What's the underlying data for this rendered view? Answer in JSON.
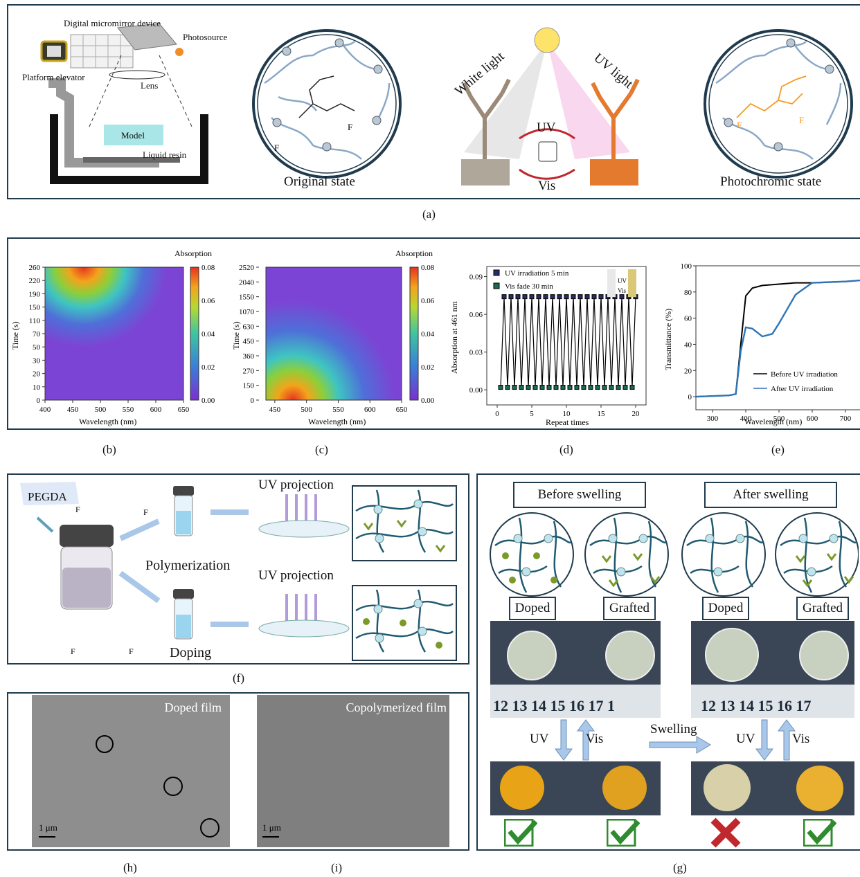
{
  "panel_a": {
    "dmd_label": "Digital micromirror device",
    "photosource_label": "Photosource",
    "platform_label": "Platform elevator",
    "lens_label": "Lens",
    "model_label": "Model",
    "resin_label": "Liquid resin",
    "original_state": "Original state",
    "white_light": "White light",
    "uv_light": "UV light",
    "uv": "UV",
    "vis": "Vis",
    "photochromic_state": "Photochromic state",
    "caption": "(a)"
  },
  "panel_b": {
    "caption": "(b)",
    "colorbar_title": "Absorption"
  },
  "panel_c": {
    "caption": "(c)",
    "colorbar_title": "Absorption"
  },
  "panel_d": {
    "caption": "(d)",
    "inset_top": "UV",
    "inset_bottom": "Vis"
  },
  "panel_e": {
    "caption": "(e)"
  },
  "panel_f": {
    "pegda": "PEGDA",
    "uv_projection_1": "UV projection",
    "uv_projection_2": "UV projection",
    "polymerization": "Polymerization",
    "doping": "Doping",
    "caption": "(f)"
  },
  "panel_g": {
    "before": "Before swelling",
    "after": "After swelling",
    "doped_1": "Doped",
    "grafted_1": "Grafted",
    "doped_2": "Doped",
    "grafted_2": "Grafted",
    "ruler_1": "12  13  14  15  16  17  1",
    "ruler_2": "12  13  14  15  16  17",
    "uv_1": "UV",
    "vis_1": "Vis",
    "uv_2": "UV",
    "vis_2": "Vis",
    "swelling": "Swelling",
    "caption": "(g)"
  },
  "panel_h": {
    "title": "Doped film",
    "scale": "1 μm",
    "caption": "(h)"
  },
  "panel_i": {
    "title": "Copolymerized film",
    "scale": "1 μm",
    "caption": "(i)"
  },
  "colors": {
    "frame": "#1f3b4d",
    "network": "#8aa8c8",
    "bead": "#b8c9d6",
    "orange": "#f59a23",
    "blue_curve": "#2e75b6",
    "check": "#2e8b2e",
    "cross": "#c0282d"
  },
  "chart_data": [
    {
      "type": "heatmap",
      "panel": "b",
      "xlabel": "Wavelength (nm)",
      "ylabel": "Time (s)",
      "x_ticks": [
        400,
        450,
        500,
        550,
        600,
        650
      ],
      "y_ticks": [
        0,
        10,
        20,
        30,
        50,
        70,
        110,
        150,
        190,
        220,
        260
      ],
      "colorbar_title": "Absorption",
      "colorbar_ticks": [
        "0.00",
        "0.02",
        "0.04",
        "0.06",
        "0.08"
      ],
      "peak_wavelength": 460
    },
    {
      "type": "heatmap",
      "panel": "c",
      "xlabel": "Wavelength (nm)",
      "ylabel": "Time (s)",
      "x_ticks": [
        450,
        500,
        550,
        600,
        650
      ],
      "y_ticks": [
        0,
        150,
        270,
        360,
        450,
        630,
        1070,
        1550,
        2040,
        2520
      ],
      "colorbar_title": "Absorption",
      "colorbar_ticks": [
        "0.00",
        "0.02",
        "0.04",
        "0.06",
        "0.08"
      ],
      "peak_wavelength": 460
    },
    {
      "type": "line",
      "panel": "d",
      "xlabel": "Repeat times",
      "ylabel": "Absorption at 461 nm",
      "x_ticks": [
        0,
        5,
        10,
        15,
        20
      ],
      "y_ticks": [
        "0.00",
        "0.03",
        "0.06",
        "0.09"
      ],
      "series": [
        {
          "name": "UV irradiation 5 min",
          "value": 0.074,
          "x": [
            1,
            2,
            3,
            4,
            5,
            6,
            7,
            8,
            9,
            10,
            11,
            12,
            13,
            14,
            15,
            16,
            17,
            18,
            19,
            20
          ]
        },
        {
          "name": "Vis fade 30 min",
          "value": 0.002,
          "x": [
            1,
            2,
            3,
            4,
            5,
            6,
            7,
            8,
            9,
            10,
            11,
            12,
            13,
            14,
            15,
            16,
            17,
            18,
            19,
            20
          ]
        }
      ]
    },
    {
      "type": "line",
      "panel": "e",
      "xlabel": "Wavelength (nm)",
      "ylabel": "Transmittance (%)",
      "x_ticks": [
        300,
        400,
        500,
        600,
        700
      ],
      "y_ticks": [
        0,
        20,
        40,
        60,
        80,
        100
      ],
      "series": [
        {
          "name": "Before UV irradiation",
          "x": [
            250,
            300,
            350,
            370,
            385,
            400,
            420,
            450,
            500,
            550,
            600,
            650,
            700,
            750
          ],
          "y": [
            0,
            0.5,
            1,
            2,
            40,
            77,
            83,
            85,
            86,
            87,
            87,
            87.5,
            88,
            89
          ]
        },
        {
          "name": "After UV irradiation",
          "x": [
            250,
            300,
            350,
            370,
            385,
            400,
            420,
            450,
            480,
            500,
            550,
            600,
            650,
            700,
            750
          ],
          "y": [
            0,
            0.5,
            1,
            2,
            35,
            53,
            52,
            46,
            48,
            56,
            78,
            87,
            87.5,
            88,
            89
          ]
        }
      ]
    }
  ]
}
